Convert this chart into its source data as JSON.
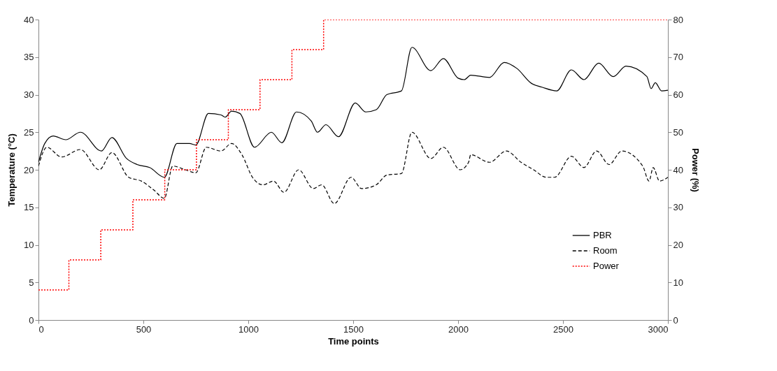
{
  "chart_data": {
    "type": "line",
    "xlabel": "Time points",
    "ylabel": "Temperature (°C)",
    "y2label": "Power (%)",
    "xlim": [
      0,
      3000
    ],
    "xticks": [
      0,
      500,
      1000,
      1500,
      2000,
      2500,
      3000
    ],
    "ylim": [
      0,
      40
    ],
    "yticks": [
      0,
      5,
      10,
      15,
      20,
      25,
      30,
      35,
      40
    ],
    "y2lim": [
      0,
      80
    ],
    "y2ticks": [
      0,
      10,
      20,
      30,
      40,
      50,
      60,
      70,
      80
    ],
    "legend": "bottom right",
    "grid": false,
    "series": [
      {
        "name": "PBR",
        "color": "#000000",
        "line_style": "solid",
        "x": [
          0,
          30,
          70,
          130,
          200,
          300,
          350,
          420,
          470,
          530,
          600,
          660,
          720,
          750,
          810,
          870,
          890,
          920,
          960,
          1030,
          1110,
          1160,
          1230,
          1300,
          1330,
          1370,
          1430,
          1510,
          1560,
          1610,
          1660,
          1730,
          1780,
          1870,
          1930,
          2000,
          2030,
          2060,
          2150,
          2220,
          2280,
          2350,
          2400,
          2470,
          2540,
          2600,
          2670,
          2740,
          2800,
          2900,
          2920,
          2940,
          2970,
          3000
        ],
        "values": [
          21,
          23.5,
          24.5,
          24,
          25,
          22.5,
          24.3,
          21.5,
          20.7,
          20.3,
          19,
          23.5,
          23.5,
          23.3,
          27.5,
          27.3,
          27,
          27.8,
          27.5,
          23,
          25,
          23.6,
          27.7,
          26.5,
          25,
          26,
          24.4,
          28.9,
          27.7,
          28,
          30,
          30.5,
          36.3,
          33.2,
          34.8,
          32.2,
          32,
          32.6,
          32.3,
          34.3,
          33.5,
          31.5,
          31,
          30.5,
          33.3,
          32,
          34.2,
          32.4,
          33.8,
          32.4,
          30.8,
          31.6,
          30.5,
          30.6
        ]
      },
      {
        "name": "Room",
        "color": "#000000",
        "line_style": "dashed",
        "x": [
          0,
          40,
          110,
          200,
          290,
          350,
          430,
          490,
          550,
          600,
          640,
          700,
          750,
          800,
          870,
          920,
          970,
          1020,
          1070,
          1120,
          1170,
          1240,
          1310,
          1350,
          1410,
          1490,
          1540,
          1610,
          1660,
          1730,
          1780,
          1870,
          1930,
          2010,
          2050,
          2060,
          2150,
          2230,
          2300,
          2360,
          2420,
          2460,
          2540,
          2600,
          2660,
          2720,
          2780,
          2880,
          2910,
          2930,
          2960,
          3000
        ],
        "values": [
          20.5,
          23,
          21.7,
          22.7,
          20,
          22.3,
          19,
          18.5,
          17.3,
          16.2,
          20.5,
          20,
          19.6,
          23,
          22.5,
          23.5,
          22,
          19,
          18,
          18.5,
          17,
          20,
          17.5,
          18,
          15.5,
          19,
          17.5,
          18,
          19.3,
          19.5,
          25,
          21.5,
          23,
          20,
          21,
          22,
          21,
          22.5,
          21,
          20,
          19,
          19,
          21.8,
          20.3,
          22.5,
          20.7,
          22.5,
          20.5,
          18.5,
          20.3,
          18.5,
          19
        ]
      },
      {
        "name": "Power",
        "type": "step",
        "axis": "y2",
        "color": "#ff0000",
        "line_style": "dotted",
        "x": [
          0,
          145,
          297,
          450,
          602,
          753,
          905,
          1056,
          1208,
          1359,
          3000
        ],
        "values": [
          8,
          16,
          24,
          32,
          40,
          48,
          56,
          64,
          72,
          80,
          80
        ]
      }
    ]
  }
}
